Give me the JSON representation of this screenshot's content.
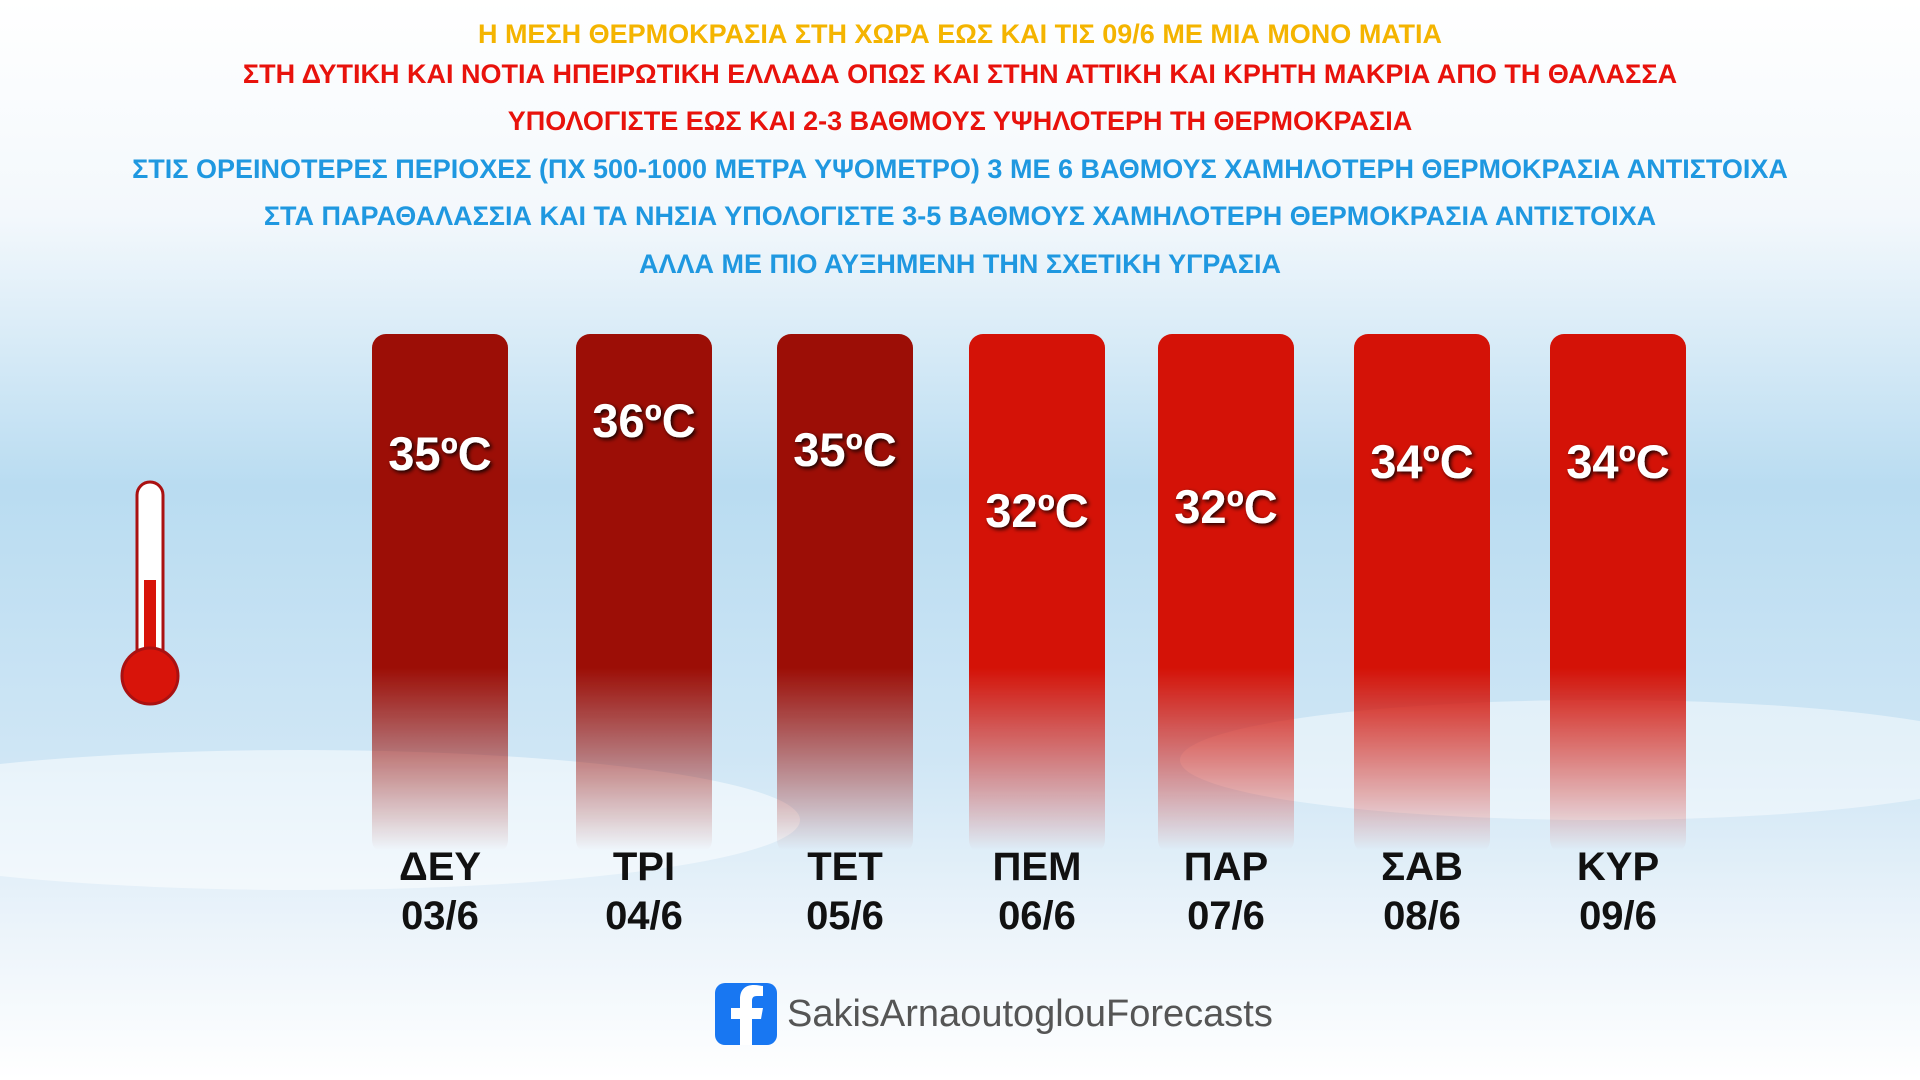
{
  "header": {
    "lines": [
      {
        "text": "Η ΜΕΣΗ ΘΕΡΜΟΚΡΑΣΙΑ ΣΤΗ ΧΩΡΑ ΕΩΣ ΚΑΙ ΤΙΣ 09/6 ΜΕ ΜΙΑ ΜΟΝΟ ΜΑΤΙΑ",
        "color": "#f4b400"
      },
      {
        "text": "ΣΤΗ ΔΥΤΙΚΗ ΚΑΙ ΝΟΤΙΑ ΗΠΕΙΡΩΤΙΚΗ ΕΛΛΑΔΑ ΟΠΩΣ ΚΑΙ ΣΤΗΝ ΑΤΤΙΚΗ ΚΑΙ ΚΡΗΤΗ ΜΑΚΡΙΑ ΑΠΟ ΤΗ ΘΑΛΑΣΣΑ",
        "color": "#e8120c"
      },
      {
        "text": "ΥΠΟΛΟΓΙΣΤΕ ΕΩΣ ΚΑΙ 2-3 ΒΑΘΜΟΥΣ ΥΨΗΛΟΤΕΡΗ ΤΗ ΘΕΡΜΟΚΡΑΣΙΑ",
        "color": "#e8120c"
      },
      {
        "text": "ΣΤΙΣ ΟΡΕΙΝΟΤΕΡΕΣ ΠΕΡΙΟΧΕΣ (ΠΧ 500-1000 ΜΕΤΡΑ ΥΨΟΜΕΤΡΟ) 3 ΜΕ 6 ΒΑΘΜΟΥΣ ΧΑΜΗΛΟΤΕΡΗ ΘΕΡΜΟΚΡΑΣΙΑ ΑΝΤΙΣΤΟΙΧΑ",
        "color": "#1f98e0"
      },
      {
        "text": "ΣΤΑ ΠΑΡΑΘΑΛΑΣΣΙΑ ΚΑΙ ΤΑ ΝΗΣΙΑ ΥΠΟΛΟΓΙΣΤΕ 3-5 ΒΑΘΜΟΥΣ ΧΑΜΗΛΟΤΕΡΗ ΘΕΡΜΟΚΡΑΣΙΑ ΑΝΤΙΣΤΟΙΧΑ",
        "color": "#1f98e0"
      },
      {
        "text": "ΑΛΛΑ ΜΕ ΠΙΟ ΑΥΞΗΜΕΝΗ ΤΗΝ ΣΧΕΤΙΚΗ ΥΓΡΑΣΙΑ",
        "color": "#1f98e0"
      }
    ]
  },
  "days": [
    {
      "day": "ΔΕΥ",
      "date": "03/6",
      "temp": "35ºC",
      "color": "#9c0e06"
    },
    {
      "day": "ΤΡΙ",
      "date": "04/6",
      "temp": "36ºC",
      "color": "#9c0e06"
    },
    {
      "day": "ΤΕΤ",
      "date": "05/6",
      "temp": "35ºC",
      "color": "#9c0e06"
    },
    {
      "day": "ΠΕΜ",
      "date": "06/6",
      "temp": "32ºC",
      "color": "#d41207"
    },
    {
      "day": "ΠΑΡ",
      "date": "07/6",
      "temp": "32ºC",
      "color": "#d41207"
    },
    {
      "day": "ΣΑΒ",
      "date": "08/6",
      "temp": "34ºC",
      "color": "#d41207"
    },
    {
      "day": "ΚΥΡ",
      "date": "09/6",
      "temp": "34ºC",
      "color": "#d41207"
    }
  ],
  "footer": {
    "page": "SakisArnaoutoglouForecasts"
  }
}
